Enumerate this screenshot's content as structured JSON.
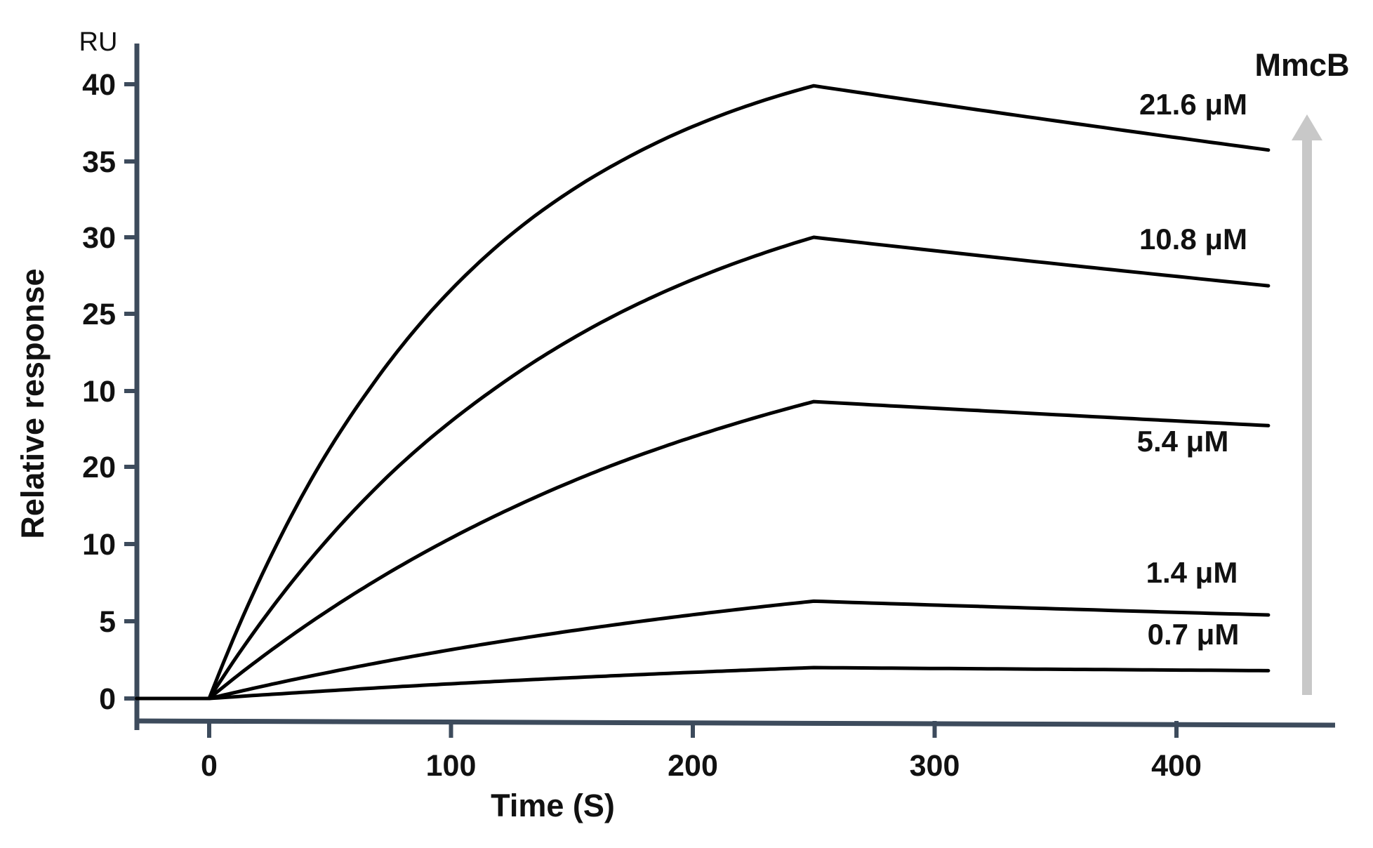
{
  "chart_data": {
    "type": "line",
    "title": "",
    "xlabel": "Time (S)",
    "ylabel": "Relative response",
    "y_unit": "RU",
    "xlim": [
      -30,
      465
    ],
    "x_ticks": [
      0,
      100,
      200,
      300,
      400
    ],
    "y_ticks": [
      "0",
      "5",
      "10",
      "20",
      "25",
      "30",
      "35",
      "40"
    ],
    "grid": false,
    "legend": "inline labels at right",
    "arrow_label": "MmcB",
    "colors": {
      "line": "#000000",
      "axis": "#3d4b5c",
      "arrow": "#c8c8c8"
    },
    "series": [
      {
        "name": "0.7 μM",
        "x": [
          -30,
          0,
          250,
          440
        ],
        "y": [
          0,
          0,
          2,
          1.8
        ]
      },
      {
        "name": "1.4 μM",
        "x": [
          -30,
          0,
          250,
          440
        ],
        "y": [
          0,
          0,
          6.3,
          5.4
        ]
      },
      {
        "name": "5.4 μM",
        "x": [
          -30,
          0,
          250,
          440
        ],
        "y": [
          0,
          0,
          19.3,
          17.7
        ]
      },
      {
        "name": "10.8 μM",
        "x": [
          -30,
          0,
          250,
          440
        ],
        "y": [
          0,
          0,
          30,
          26.8
        ]
      },
      {
        "name": "21.6 μM",
        "x": [
          -30,
          0,
          250,
          440
        ],
        "y": [
          0,
          0,
          39.9,
          35.7
        ]
      }
    ]
  }
}
